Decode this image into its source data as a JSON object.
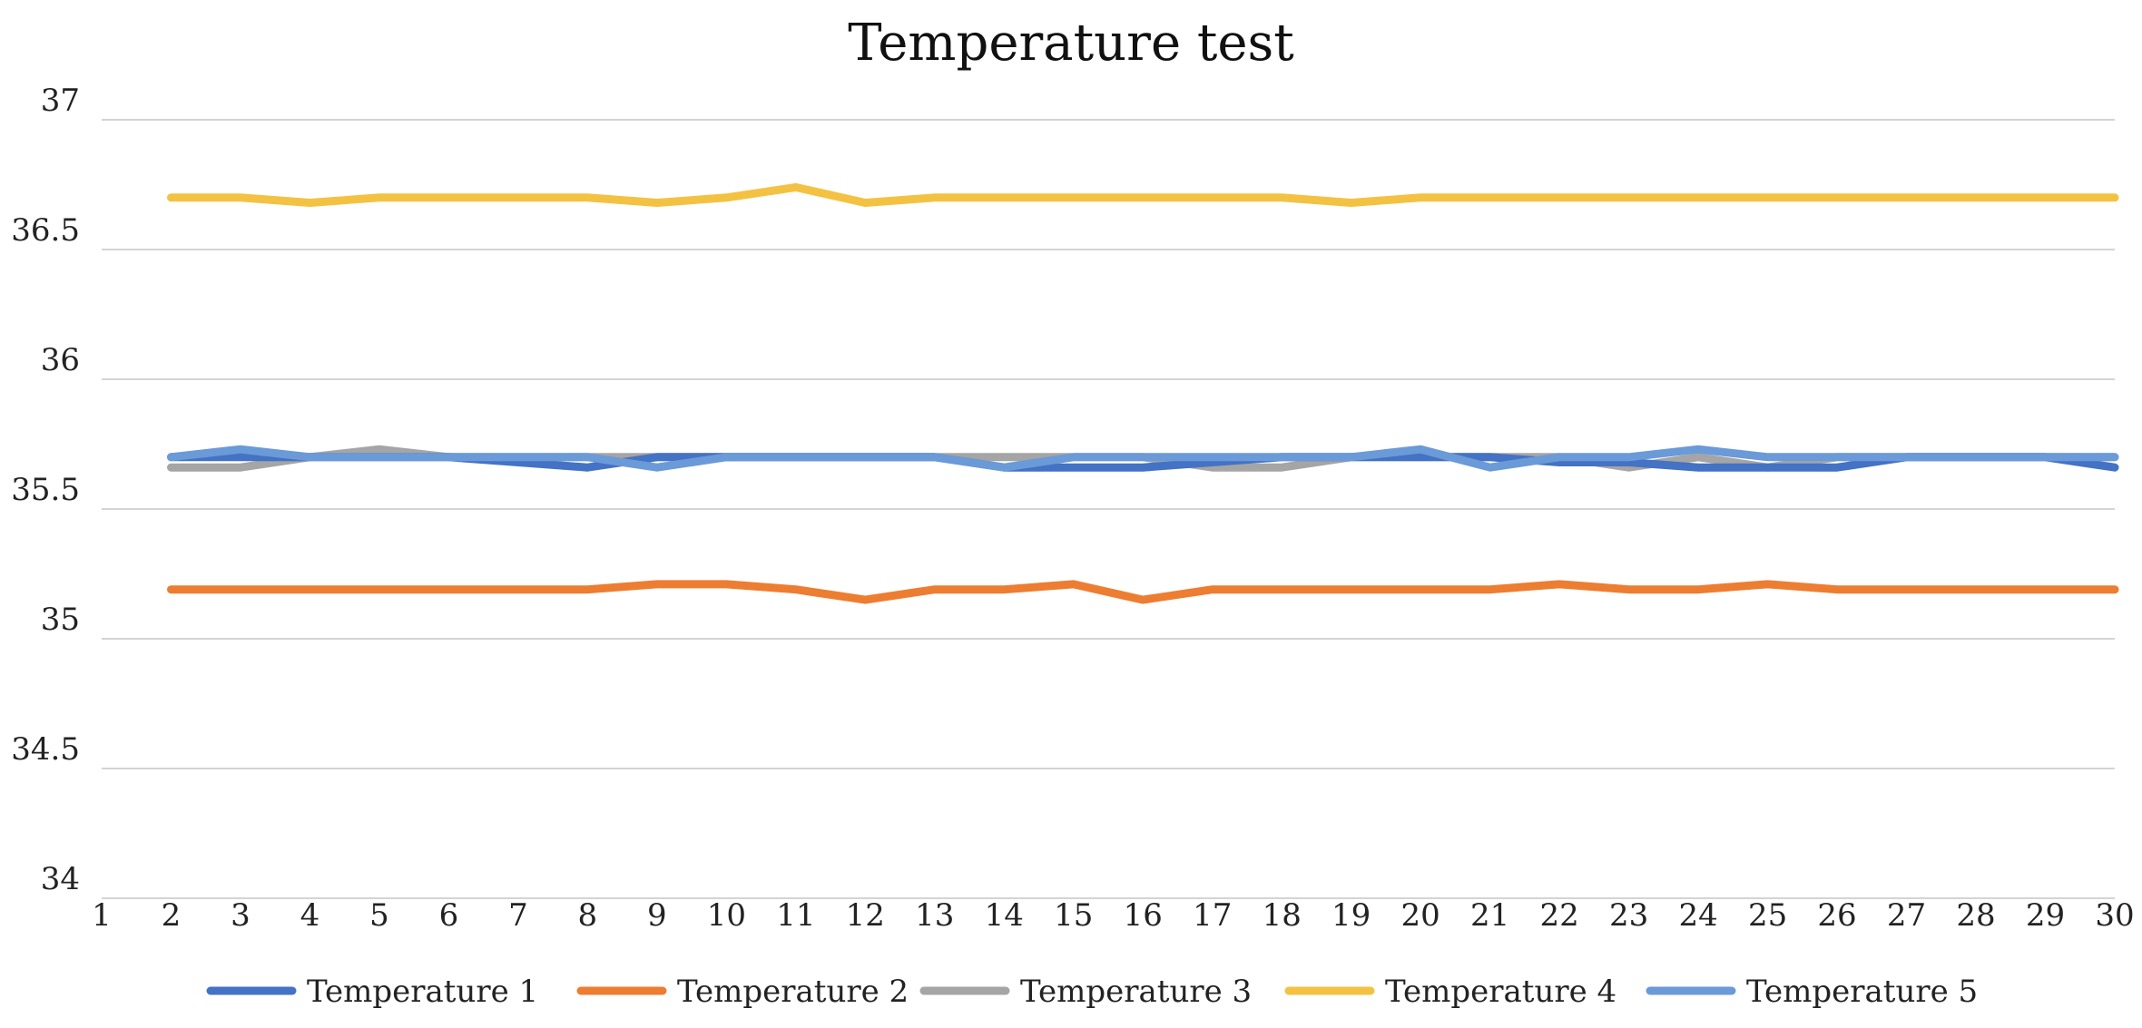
{
  "chart_data": {
    "type": "line",
    "title": "Temperature test",
    "xlabel": "",
    "ylabel": "",
    "ylim": [
      34,
      37
    ],
    "yticks": [
      34,
      34.5,
      35,
      35.5,
      36,
      36.5,
      37
    ],
    "ytick_labels": [
      "34",
      "34.5",
      "35",
      "35.5",
      "36",
      "36.5",
      "37"
    ],
    "x_tick_labels": [
      "1",
      "2",
      "3",
      "4",
      "5",
      "6",
      "7",
      "8",
      "9",
      "10",
      "11",
      "12",
      "13",
      "14",
      "15",
      "16",
      "17",
      "18",
      "19",
      "20",
      "21",
      "22",
      "23",
      "24",
      "25",
      "26",
      "27",
      "28",
      "29",
      "30"
    ],
    "x": [
      2,
      3,
      4,
      5,
      6,
      7,
      8,
      9,
      10,
      11,
      12,
      13,
      14,
      15,
      16,
      17,
      18,
      19,
      20,
      21,
      22,
      23,
      24,
      25,
      26,
      27,
      28,
      29,
      30
    ],
    "grid": true,
    "legend_position": "bottom",
    "series": [
      {
        "name": "Temperature 1",
        "color": "#4472C4",
        "values": [
          35.7,
          35.7,
          35.7,
          35.7,
          35.7,
          35.68,
          35.66,
          35.7,
          35.7,
          35.7,
          35.7,
          35.7,
          35.66,
          35.66,
          35.66,
          35.68,
          35.7,
          35.7,
          35.7,
          35.7,
          35.68,
          35.68,
          35.66,
          35.66,
          35.66,
          35.7,
          35.7,
          35.7,
          35.66
        ]
      },
      {
        "name": "Temperature 2",
        "color": "#ED7D31",
        "values": [
          35.19,
          35.19,
          35.19,
          35.19,
          35.19,
          35.19,
          35.19,
          35.21,
          35.21,
          35.19,
          35.15,
          35.19,
          35.19,
          35.21,
          35.15,
          35.19,
          35.19,
          35.19,
          35.19,
          35.19,
          35.21,
          35.19,
          35.19,
          35.21,
          35.19,
          35.19,
          35.19,
          35.19,
          35.19
        ]
      },
      {
        "name": "Temperature 3",
        "color": "#A5A5A5",
        "values": [
          35.66,
          35.66,
          35.7,
          35.73,
          35.7,
          35.7,
          35.7,
          35.7,
          35.7,
          35.7,
          35.7,
          35.7,
          35.7,
          35.7,
          35.7,
          35.66,
          35.66,
          35.7,
          35.7,
          35.7,
          35.7,
          35.66,
          35.7,
          35.66,
          35.7,
          35.7,
          35.7,
          35.7,
          35.7
        ]
      },
      {
        "name": "Temperature 4",
        "color": "#F4C242",
        "values": [
          36.7,
          36.7,
          36.68,
          36.7,
          36.7,
          36.7,
          36.7,
          36.68,
          36.7,
          36.74,
          36.68,
          36.7,
          36.7,
          36.7,
          36.7,
          36.7,
          36.7,
          36.68,
          36.7,
          36.7,
          36.7,
          36.7,
          36.7,
          36.7,
          36.7,
          36.7,
          36.7,
          36.7,
          36.7
        ]
      },
      {
        "name": "Temperature 5",
        "color": "#6A9AD8",
        "values": [
          35.7,
          35.73,
          35.7,
          35.7,
          35.7,
          35.7,
          35.7,
          35.66,
          35.7,
          35.7,
          35.7,
          35.7,
          35.66,
          35.7,
          35.7,
          35.7,
          35.7,
          35.7,
          35.73,
          35.66,
          35.7,
          35.7,
          35.73,
          35.7,
          35.7,
          35.7,
          35.7,
          35.7,
          35.7
        ]
      }
    ]
  }
}
